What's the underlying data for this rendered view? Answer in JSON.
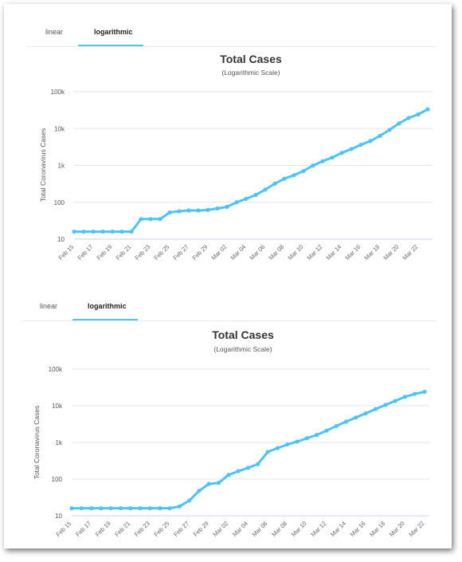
{
  "colors": {
    "series": "#4fc3f7",
    "active_tab_underline": "#4fc3f7",
    "grid": "#e6e6e6"
  },
  "panels": [
    {
      "tabs": [
        {
          "label": "linear",
          "active": false
        },
        {
          "label": "logarithmic",
          "active": true
        }
      ]
    },
    {
      "tabs": [
        {
          "label": "linear",
          "active": false
        },
        {
          "label": "logarithmic",
          "active": true
        }
      ]
    }
  ],
  "chart_data": [
    {
      "type": "line",
      "title": "Total Cases",
      "subtitle": "(Logarithmic Scale)",
      "ylabel": "Total Coronavirus Cases",
      "xlabel": "",
      "yscale": "log",
      "ylim": [
        10,
        100000
      ],
      "ytick_values": [
        10,
        100,
        1000,
        10000,
        100000
      ],
      "ytick_labels": [
        "10",
        "100",
        "1k",
        "10k",
        "100k"
      ],
      "x_tick_labels": [
        "Feb 15",
        "Feb 17",
        "Feb 19",
        "Feb 21",
        "Feb 23",
        "Feb 25",
        "Feb 27",
        "Feb 29",
        "Mar 02",
        "Mar 04",
        "Mar 06",
        "Mar 08",
        "Mar 10",
        "Mar 12",
        "Mar 14",
        "Mar 16",
        "Mar 18",
        "Mar 20",
        "Mar 22"
      ],
      "x_start": "Feb 15",
      "grid": true,
      "series": [
        {
          "values": [
            16,
            16,
            16,
            16,
            16,
            16,
            16,
            35,
            35,
            35,
            53,
            57,
            60,
            60,
            62,
            68,
            75,
            100,
            124,
            158,
            221,
            319,
            435,
            541,
            704,
            994,
            1301,
            1630,
            2183,
            2770,
            3613,
            4596,
            6344,
            9197,
            13779,
            19367,
            24192,
            33276
          ]
        }
      ]
    },
    {
      "type": "line",
      "title": "Total Cases",
      "subtitle": "(Logarithmic Scale)",
      "ylabel": "Total Coronavirus Cases",
      "xlabel": "",
      "yscale": "log",
      "ylim": [
        10,
        100000
      ],
      "ytick_values": [
        10,
        100,
        1000,
        10000,
        100000
      ],
      "ytick_labels": [
        "10",
        "100",
        "1k",
        "10k",
        "100k"
      ],
      "x_tick_labels": [
        "Feb 15",
        "Feb 17",
        "Feb 19",
        "Feb 21",
        "Feb 23",
        "Feb 25",
        "Feb 27",
        "Feb 29",
        "Mar 02",
        "Mar 04",
        "Mar 06",
        "Mar 08",
        "Mar 10",
        "Mar 12",
        "Mar 14",
        "Mar 16",
        "Mar 18",
        "Mar 20",
        "Mar 22"
      ],
      "x_start": "Feb 15",
      "grid": true,
      "series": [
        {
          "values": [
            16,
            16,
            16,
            16,
            16,
            16,
            16,
            16,
            16,
            16,
            16,
            18,
            26,
            48,
            74,
            79,
            130,
            165,
            203,
            257,
            550,
            700,
            880,
            1050,
            1300,
            1600,
            2100,
            2800,
            3700,
            4800,
            6200,
            8100,
            10500,
            13500,
            17500,
            21000,
            24000
          ]
        }
      ]
    }
  ]
}
